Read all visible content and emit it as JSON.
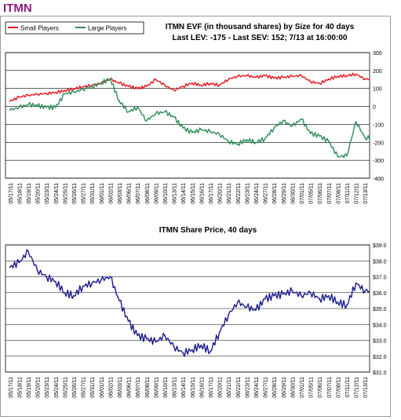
{
  "page": {
    "ticker_title": "ITMN"
  },
  "colors": {
    "small_players": "#e8141b",
    "large_players": "#2e8b57",
    "share_price": "#1a1a8c",
    "title": "#8a1a7a"
  },
  "chart_data": [
    {
      "type": "line",
      "title": "ITMN EVF (in thousand shares) by Size for 40 days",
      "subtitle": "Last LEV: -175 - Last SEV: 152; 7/13 at 16:00:00",
      "ylim": [
        -400,
        300
      ],
      "yticks": [
        300,
        200,
        100,
        0,
        -100,
        -200,
        -300,
        -400
      ],
      "ylabel": "",
      "legend_position": "top-left",
      "grid": "horizontal",
      "x": [
        "05/17/11",
        "05/18/11",
        "05/19/11",
        "05/20/11",
        "05/23/11",
        "05/24/11",
        "05/25/11",
        "05/26/11",
        "05/27/11",
        "05/31/11",
        "06/01/11",
        "06/02/11",
        "06/03/11",
        "06/06/11",
        "06/07/11",
        "06/08/11",
        "06/09/11",
        "06/10/11",
        "06/13/11",
        "06/14/11",
        "06/15/11",
        "06/16/11",
        "06/17/11",
        "06/20/11",
        "06/21/11",
        "06/22/11",
        "06/23/11",
        "06/24/11",
        "06/27/11",
        "06/28/11",
        "06/29/11",
        "06/30/11",
        "07/01/11",
        "07/05/11",
        "07/06/11",
        "07/07/11",
        "07/08/11",
        "07/11/11",
        "07/12/11",
        "07/13/11"
      ],
      "series": [
        {
          "name": "Small Players",
          "values": [
            30,
            52,
            62,
            68,
            72,
            78,
            88,
            98,
            110,
            118,
            130,
            152,
            130,
            112,
            100,
            112,
            150,
            118,
            90,
            112,
            130,
            118,
            128,
            118,
            152,
            168,
            172,
            162,
            172,
            158,
            162,
            168,
            172,
            138,
            128,
            152,
            168,
            172,
            180,
            152
          ]
        },
        {
          "name": "Large Players",
          "values": [
            -20,
            -5,
            10,
            5,
            -5,
            -5,
            70,
            80,
            95,
            110,
            130,
            155,
            30,
            -30,
            -5,
            -80,
            -40,
            -30,
            -60,
            -120,
            -145,
            -130,
            -140,
            -155,
            -195,
            -210,
            -185,
            -200,
            -180,
            -120,
            -80,
            -110,
            -70,
            -150,
            -165,
            -195,
            -280,
            -275,
            -85,
            -175
          ]
        }
      ]
    },
    {
      "type": "line",
      "title": "ITMN Share Price, 40 days",
      "ylim": [
        31.0,
        39.0
      ],
      "yticks": [
        "$39.0",
        "$38.0",
        "$37.0",
        "$36.0",
        "$35.0",
        "$34.0",
        "$33.0",
        "$32.0",
        "$31.0"
      ],
      "ylabel": "",
      "grid": "horizontal",
      "x": [
        "05/17/11",
        "05/18/11",
        "05/19/11",
        "05/20/11",
        "05/23/11",
        "05/24/11",
        "05/25/11",
        "05/26/11",
        "05/27/11",
        "05/31/11",
        "06/01/11",
        "06/02/11",
        "06/03/11",
        "06/06/11",
        "06/07/11",
        "06/08/11",
        "06/09/11",
        "06/10/11",
        "06/13/11",
        "06/14/11",
        "06/15/11",
        "06/16/11",
        "06/17/11",
        "06/20/11",
        "06/21/11",
        "06/22/11",
        "06/23/11",
        "06/24/11",
        "06/27/11",
        "06/28/11",
        "06/29/11",
        "06/30/11",
        "07/01/11",
        "07/05/11",
        "07/06/11",
        "07/07/11",
        "07/08/11",
        "07/11/11",
        "07/12/11",
        "07/13/11"
      ],
      "series": [
        {
          "name": "",
          "values": [
            37.6,
            37.9,
            38.6,
            37.4,
            37.0,
            36.7,
            36.0,
            35.8,
            36.4,
            36.6,
            36.8,
            37.0,
            35.5,
            34.2,
            33.3,
            33.1,
            32.9,
            33.3,
            32.6,
            32.2,
            32.4,
            32.7,
            32.3,
            33.5,
            34.6,
            35.4,
            35.1,
            34.9,
            35.6,
            35.8,
            35.9,
            36.1,
            35.8,
            36.0,
            35.6,
            35.8,
            35.4,
            35.2,
            36.6,
            36.1
          ]
        }
      ]
    }
  ]
}
